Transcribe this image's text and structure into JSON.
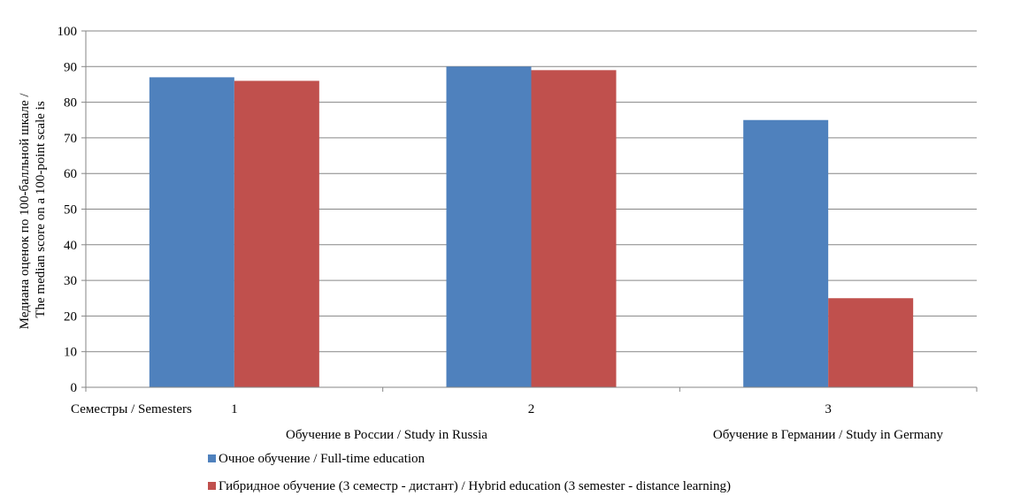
{
  "chart_data": {
    "type": "bar",
    "title": "",
    "ylabel_lines": [
      "Медиана оценок по 100-балльной шкале /",
      "The median score on a 100-point scale is"
    ],
    "xlabel": "Семестры / Semesters",
    "categories": [
      "1",
      "2",
      "3"
    ],
    "group_labels": [
      "Обучение в России  / Study in Russia",
      "Обучение в Германии / Study in  Germany"
    ],
    "ylim": [
      0,
      100
    ],
    "ytick_step": 10,
    "grid": true,
    "legend_position": "bottom",
    "series": [
      {
        "name": "Очное обучение / Full-time education",
        "color": "#4f81bd",
        "values": [
          87,
          90,
          75
        ]
      },
      {
        "name": "Гибридное обучение (3 семестр - дистант) / Hybrid education (3 semester - distance learning)",
        "color": "#c0504d",
        "values": [
          86,
          89,
          25
        ]
      }
    ]
  }
}
